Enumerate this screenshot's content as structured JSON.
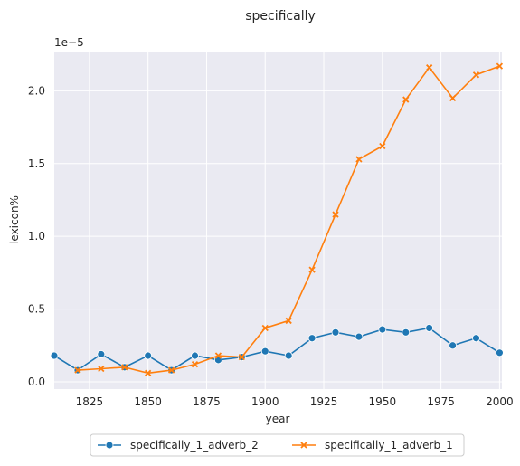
{
  "chart_data": {
    "type": "line",
    "title": "specifically",
    "xlabel": "year",
    "ylabel": "lexicon%",
    "y_offset_label": "1e−5",
    "xlim": [
      1810,
      2001
    ],
    "ylim": [
      -0.05,
      2.27
    ],
    "x_ticks": [
      1825,
      1850,
      1875,
      1900,
      1925,
      1950,
      1975,
      2000
    ],
    "y_ticks": [
      0.0,
      0.5,
      1.0,
      1.5,
      2.0
    ],
    "y_tick_labels": [
      "0.0",
      "0.5",
      "1.0",
      "1.5",
      "2.0"
    ],
    "grid": true,
    "background": "#eaeaf2",
    "legend_placement": "bottom-center (outside)",
    "x": [
      1810,
      1820,
      1830,
      1840,
      1850,
      1860,
      1870,
      1880,
      1890,
      1900,
      1910,
      1920,
      1930,
      1940,
      1950,
      1960,
      1970,
      1980,
      1990,
      2000
    ],
    "series": [
      {
        "name": "specifically_1_adverb_2",
        "color": "#1f77b4",
        "marker": "circle",
        "values": [
          0.18,
          0.08,
          0.19,
          0.1,
          0.18,
          0.08,
          0.18,
          0.15,
          0.17,
          0.21,
          0.18,
          0.3,
          0.34,
          0.31,
          0.36,
          0.34,
          0.37,
          0.25,
          0.3,
          0.2
        ]
      },
      {
        "name": "specifically_1_adverb_1",
        "color": "#ff7f0e",
        "marker": "x",
        "values": [
          null,
          0.08,
          0.09,
          0.1,
          0.06,
          0.08,
          0.12,
          0.18,
          0.17,
          0.37,
          0.42,
          0.77,
          1.15,
          1.53,
          1.62,
          1.94,
          2.16,
          1.95,
          2.11,
          2.17
        ]
      }
    ]
  }
}
